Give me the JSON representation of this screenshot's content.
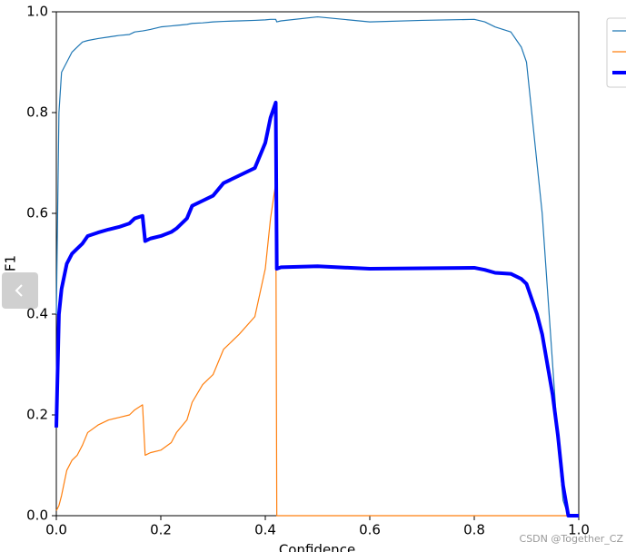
{
  "chart_data": {
    "type": "line",
    "xlabel": "Confidence",
    "ylabel": "F1",
    "watermark": "CSDN @Together_CZ",
    "x": [
      0,
      0.005,
      0.01,
      0.02,
      0.03,
      0.04,
      0.05,
      0.06,
      0.08,
      0.1,
      0.12,
      0.14,
      0.15,
      0.165,
      0.17,
      0.18,
      0.2,
      0.22,
      0.23,
      0.25,
      0.26,
      0.28,
      0.3,
      0.32,
      0.35,
      0.38,
      0.4,
      0.41,
      0.42,
      0.422,
      0.43,
      0.5,
      0.6,
      0.7,
      0.8,
      0.82,
      0.84,
      0.87,
      0.89,
      0.9,
      0.91,
      0.92,
      0.93,
      0.94,
      0.95,
      0.96,
      0.97,
      0.98,
      1.0
    ],
    "series": [
      {
        "color": "#1f77b4",
        "width": 1.2,
        "values": [
          0.4,
          0.8,
          0.88,
          0.9,
          0.92,
          0.93,
          0.94,
          0.943,
          0.947,
          0.95,
          0.953,
          0.955,
          0.96,
          0.962,
          0.963,
          0.965,
          0.97,
          0.972,
          0.973,
          0.975,
          0.977,
          0.978,
          0.98,
          0.981,
          0.982,
          0.983,
          0.984,
          0.985,
          0.985,
          0.98,
          0.982,
          0.99,
          0.98,
          0.983,
          0.985,
          0.98,
          0.97,
          0.96,
          0.93,
          0.9,
          0.8,
          0.7,
          0.6,
          0.45,
          0.3,
          0.15,
          0.03,
          0,
          0
        ]
      },
      {
        "color": "#ff7f0e",
        "width": 1.2,
        "values": [
          0.01,
          0.02,
          0.04,
          0.09,
          0.11,
          0.12,
          0.14,
          0.165,
          0.18,
          0.19,
          0.195,
          0.2,
          0.21,
          0.22,
          0.12,
          0.125,
          0.13,
          0.145,
          0.165,
          0.19,
          0.225,
          0.26,
          0.28,
          0.33,
          0.36,
          0.395,
          0.49,
          0.59,
          0.66,
          0,
          0,
          0,
          0,
          0,
          0,
          0,
          0,
          0,
          0,
          0,
          0,
          0,
          0,
          0,
          0,
          0,
          0,
          0,
          0
        ]
      },
      {
        "color": "#0000ff",
        "width": 4,
        "values": [
          0.175,
          0.4,
          0.45,
          0.5,
          0.52,
          0.53,
          0.54,
          0.555,
          0.562,
          0.568,
          0.573,
          0.58,
          0.59,
          0.595,
          0.545,
          0.55,
          0.555,
          0.563,
          0.57,
          0.59,
          0.615,
          0.625,
          0.635,
          0.66,
          0.675,
          0.69,
          0.74,
          0.79,
          0.82,
          0.49,
          0.493,
          0.495,
          0.49,
          0.491,
          0.492,
          0.488,
          0.482,
          0.48,
          0.47,
          0.46,
          0.43,
          0.4,
          0.36,
          0.3,
          0.24,
          0.16,
          0.06,
          0,
          0
        ]
      }
    ],
    "xlim": [
      0,
      1
    ],
    "ylim": [
      0,
      1
    ],
    "xticks": [
      {
        "value": 0,
        "label": "0.0"
      },
      0.2,
      0.4,
      0.6,
      0.8,
      {
        "value": 1,
        "label": "1.0"
      }
    ],
    "yticks": [
      {
        "value": 0,
        "label": "0.0"
      },
      0.2,
      0.4,
      0.6,
      0.8,
      {
        "value": 1,
        "label": "1.0"
      }
    ]
  }
}
